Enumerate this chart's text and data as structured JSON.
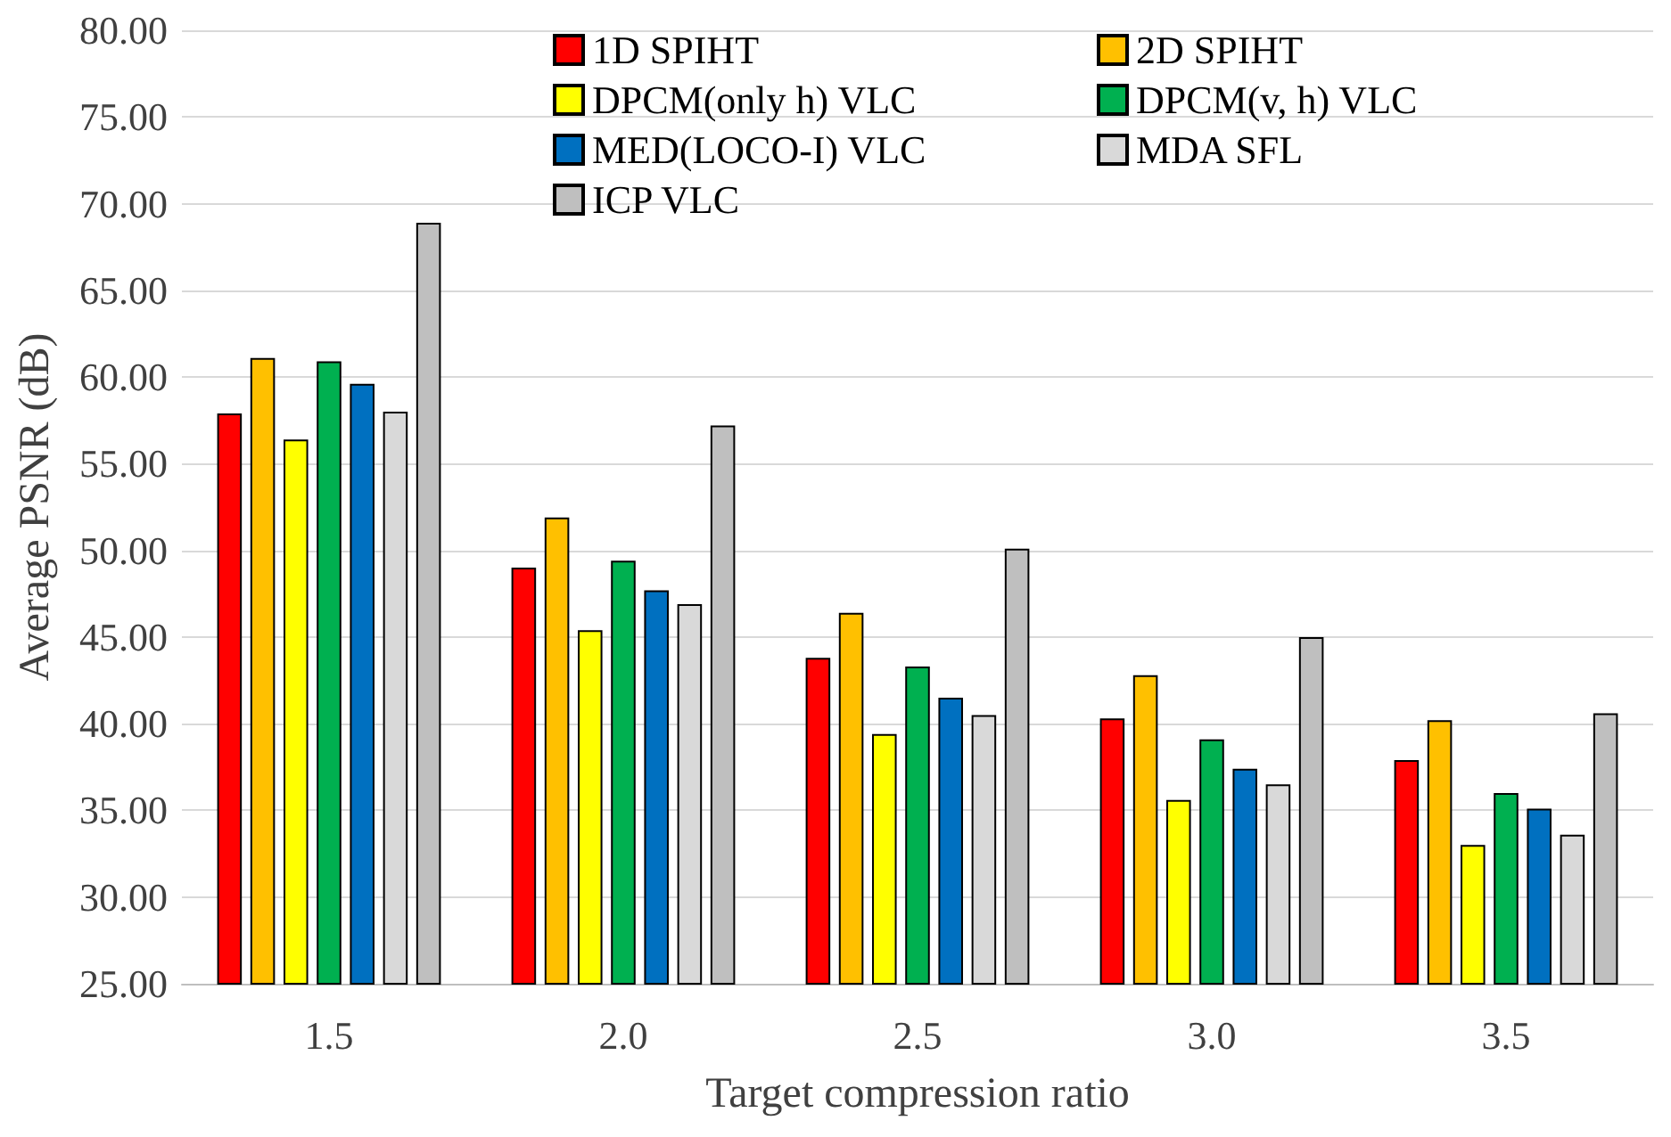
{
  "chart_data": {
    "type": "bar",
    "xlabel": "Target compression ratio",
    "ylabel": "Average PSNR (dB)",
    "categories": [
      "1.5",
      "2.0",
      "2.5",
      "3.0",
      "3.5"
    ],
    "series": [
      {
        "name": "1D SPIHT",
        "color": "#ff0000",
        "values": [
          57.9,
          49.0,
          43.8,
          40.3,
          37.9
        ]
      },
      {
        "name": "2D SPIHT",
        "color": "#ffc000",
        "values": [
          61.1,
          51.9,
          46.4,
          42.8,
          40.2
        ]
      },
      {
        "name": "DPCM(only h) VLC",
        "color": "#ffff00",
        "values": [
          56.4,
          45.4,
          39.4,
          35.6,
          33.0
        ]
      },
      {
        "name": "DPCM(v, h) VLC",
        "color": "#00b050",
        "values": [
          60.9,
          49.4,
          43.3,
          39.1,
          36.0
        ]
      },
      {
        "name": "MED(LOCO-I) VLC",
        "color": "#0070c0",
        "values": [
          59.6,
          47.7,
          41.5,
          37.4,
          35.1
        ]
      },
      {
        "name": "MDA SFL",
        "color": "#d9d9d9",
        "values": [
          58.0,
          46.9,
          40.5,
          36.5,
          33.6
        ]
      },
      {
        "name": "ICP VLC",
        "color": "#bfbfbf",
        "values": [
          68.9,
          57.2,
          50.1,
          45.0,
          40.6
        ]
      }
    ],
    "ylim": [
      25,
      80
    ],
    "yticks": [
      {
        "value": 25,
        "label": "25.00"
      },
      {
        "value": 30,
        "label": "30.00"
      },
      {
        "value": 35,
        "label": "35.00"
      },
      {
        "value": 40,
        "label": "40.00"
      },
      {
        "value": 45,
        "label": "45.00"
      },
      {
        "value": 50,
        "label": "50.00"
      },
      {
        "value": 55,
        "label": "55.00"
      },
      {
        "value": 60,
        "label": "60.00"
      },
      {
        "value": 65,
        "label": "65.00"
      },
      {
        "value": 70,
        "label": "70.00"
      },
      {
        "value": 75,
        "label": "75.00"
      },
      {
        "value": 80,
        "label": "80.00"
      }
    ],
    "grid": "y",
    "legend": "top"
  }
}
